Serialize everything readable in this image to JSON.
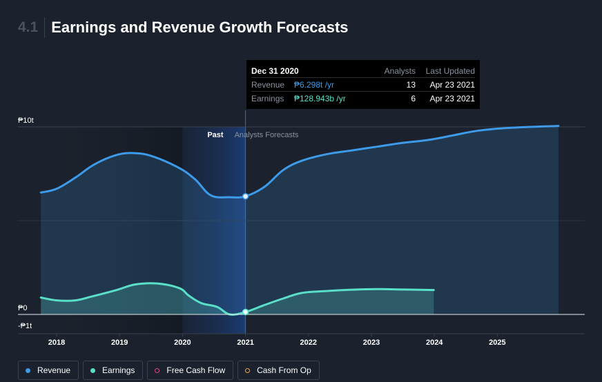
{
  "header": {
    "section": "4.1",
    "title": "Earnings and Revenue Growth Forecasts"
  },
  "tooltip": {
    "date": "Dec 31 2020",
    "col_analysts": "Analysts",
    "col_updated": "Last Updated",
    "rows": [
      {
        "label": "Revenue",
        "value": "₱6.298t /yr",
        "analysts": "13",
        "updated": "Apr 23 2021",
        "color": "#3d9be9"
      },
      {
        "label": "Earnings",
        "value": "₱128.943b /yr",
        "analysts": "6",
        "updated": "Apr 23 2021",
        "color": "#5ae0c8"
      }
    ]
  },
  "legend": [
    {
      "label": "Revenue",
      "color": "#3d9be9",
      "filled": true
    },
    {
      "label": "Earnings",
      "color": "#5ae0c8",
      "filled": true
    },
    {
      "label": "Free Cash Flow",
      "color": "#e0457b",
      "filled": false
    },
    {
      "label": "Cash From Op",
      "color": "#f0a43c",
      "filled": false
    }
  ],
  "chart_data": {
    "type": "area",
    "x_ticks": [
      "2018",
      "2019",
      "2020",
      "2021",
      "2022",
      "2023",
      "2024",
      "2025"
    ],
    "y_ticks": [
      "₱10t",
      "₱0",
      "-₱1t"
    ],
    "ylim": [
      -1,
      10
    ],
    "labels": {
      "past": "Past",
      "forecast": "Analysts Forecasts"
    },
    "series": [
      {
        "name": "Revenue",
        "color": "#3d9be9",
        "points": [
          [
            2017.75,
            6.5
          ],
          [
            2018.0,
            6.7
          ],
          [
            2018.3,
            7.3
          ],
          [
            2018.6,
            8.0
          ],
          [
            2018.95,
            8.5
          ],
          [
            2019.25,
            8.6
          ],
          [
            2019.55,
            8.4
          ],
          [
            2019.95,
            7.8
          ],
          [
            2020.2,
            7.2
          ],
          [
            2020.45,
            6.35
          ],
          [
            2020.75,
            6.25
          ],
          [
            2021.0,
            6.3
          ],
          [
            2021.3,
            6.8
          ],
          [
            2021.6,
            7.7
          ],
          [
            2021.9,
            8.2
          ],
          [
            2022.3,
            8.55
          ],
          [
            2022.7,
            8.75
          ],
          [
            2023.1,
            8.95
          ],
          [
            2023.5,
            9.15
          ],
          [
            2023.9,
            9.3
          ],
          [
            2024.3,
            9.55
          ],
          [
            2024.7,
            9.8
          ],
          [
            2025.2,
            9.95
          ],
          [
            2025.97,
            10.05
          ]
        ]
      },
      {
        "name": "Earnings",
        "color": "#5ae0c8",
        "points": [
          [
            2017.75,
            0.9
          ],
          [
            2018.0,
            0.75
          ],
          [
            2018.3,
            0.75
          ],
          [
            2018.55,
            0.95
          ],
          [
            2018.95,
            1.3
          ],
          [
            2019.25,
            1.6
          ],
          [
            2019.6,
            1.65
          ],
          [
            2019.95,
            1.4
          ],
          [
            2020.1,
            1.0
          ],
          [
            2020.3,
            0.6
          ],
          [
            2020.55,
            0.4
          ],
          [
            2020.75,
            0.0
          ],
          [
            2021.0,
            0.13
          ],
          [
            2021.3,
            0.5
          ],
          [
            2021.6,
            0.85
          ],
          [
            2021.9,
            1.15
          ],
          [
            2022.3,
            1.25
          ],
          [
            2022.7,
            1.32
          ],
          [
            2023.1,
            1.35
          ],
          [
            2023.5,
            1.33
          ],
          [
            2023.99,
            1.3
          ]
        ]
      }
    ],
    "highlight": {
      "x": 2021.0,
      "revenue": 6.298,
      "earnings": 0.129
    },
    "past_end": 2021.0
  }
}
